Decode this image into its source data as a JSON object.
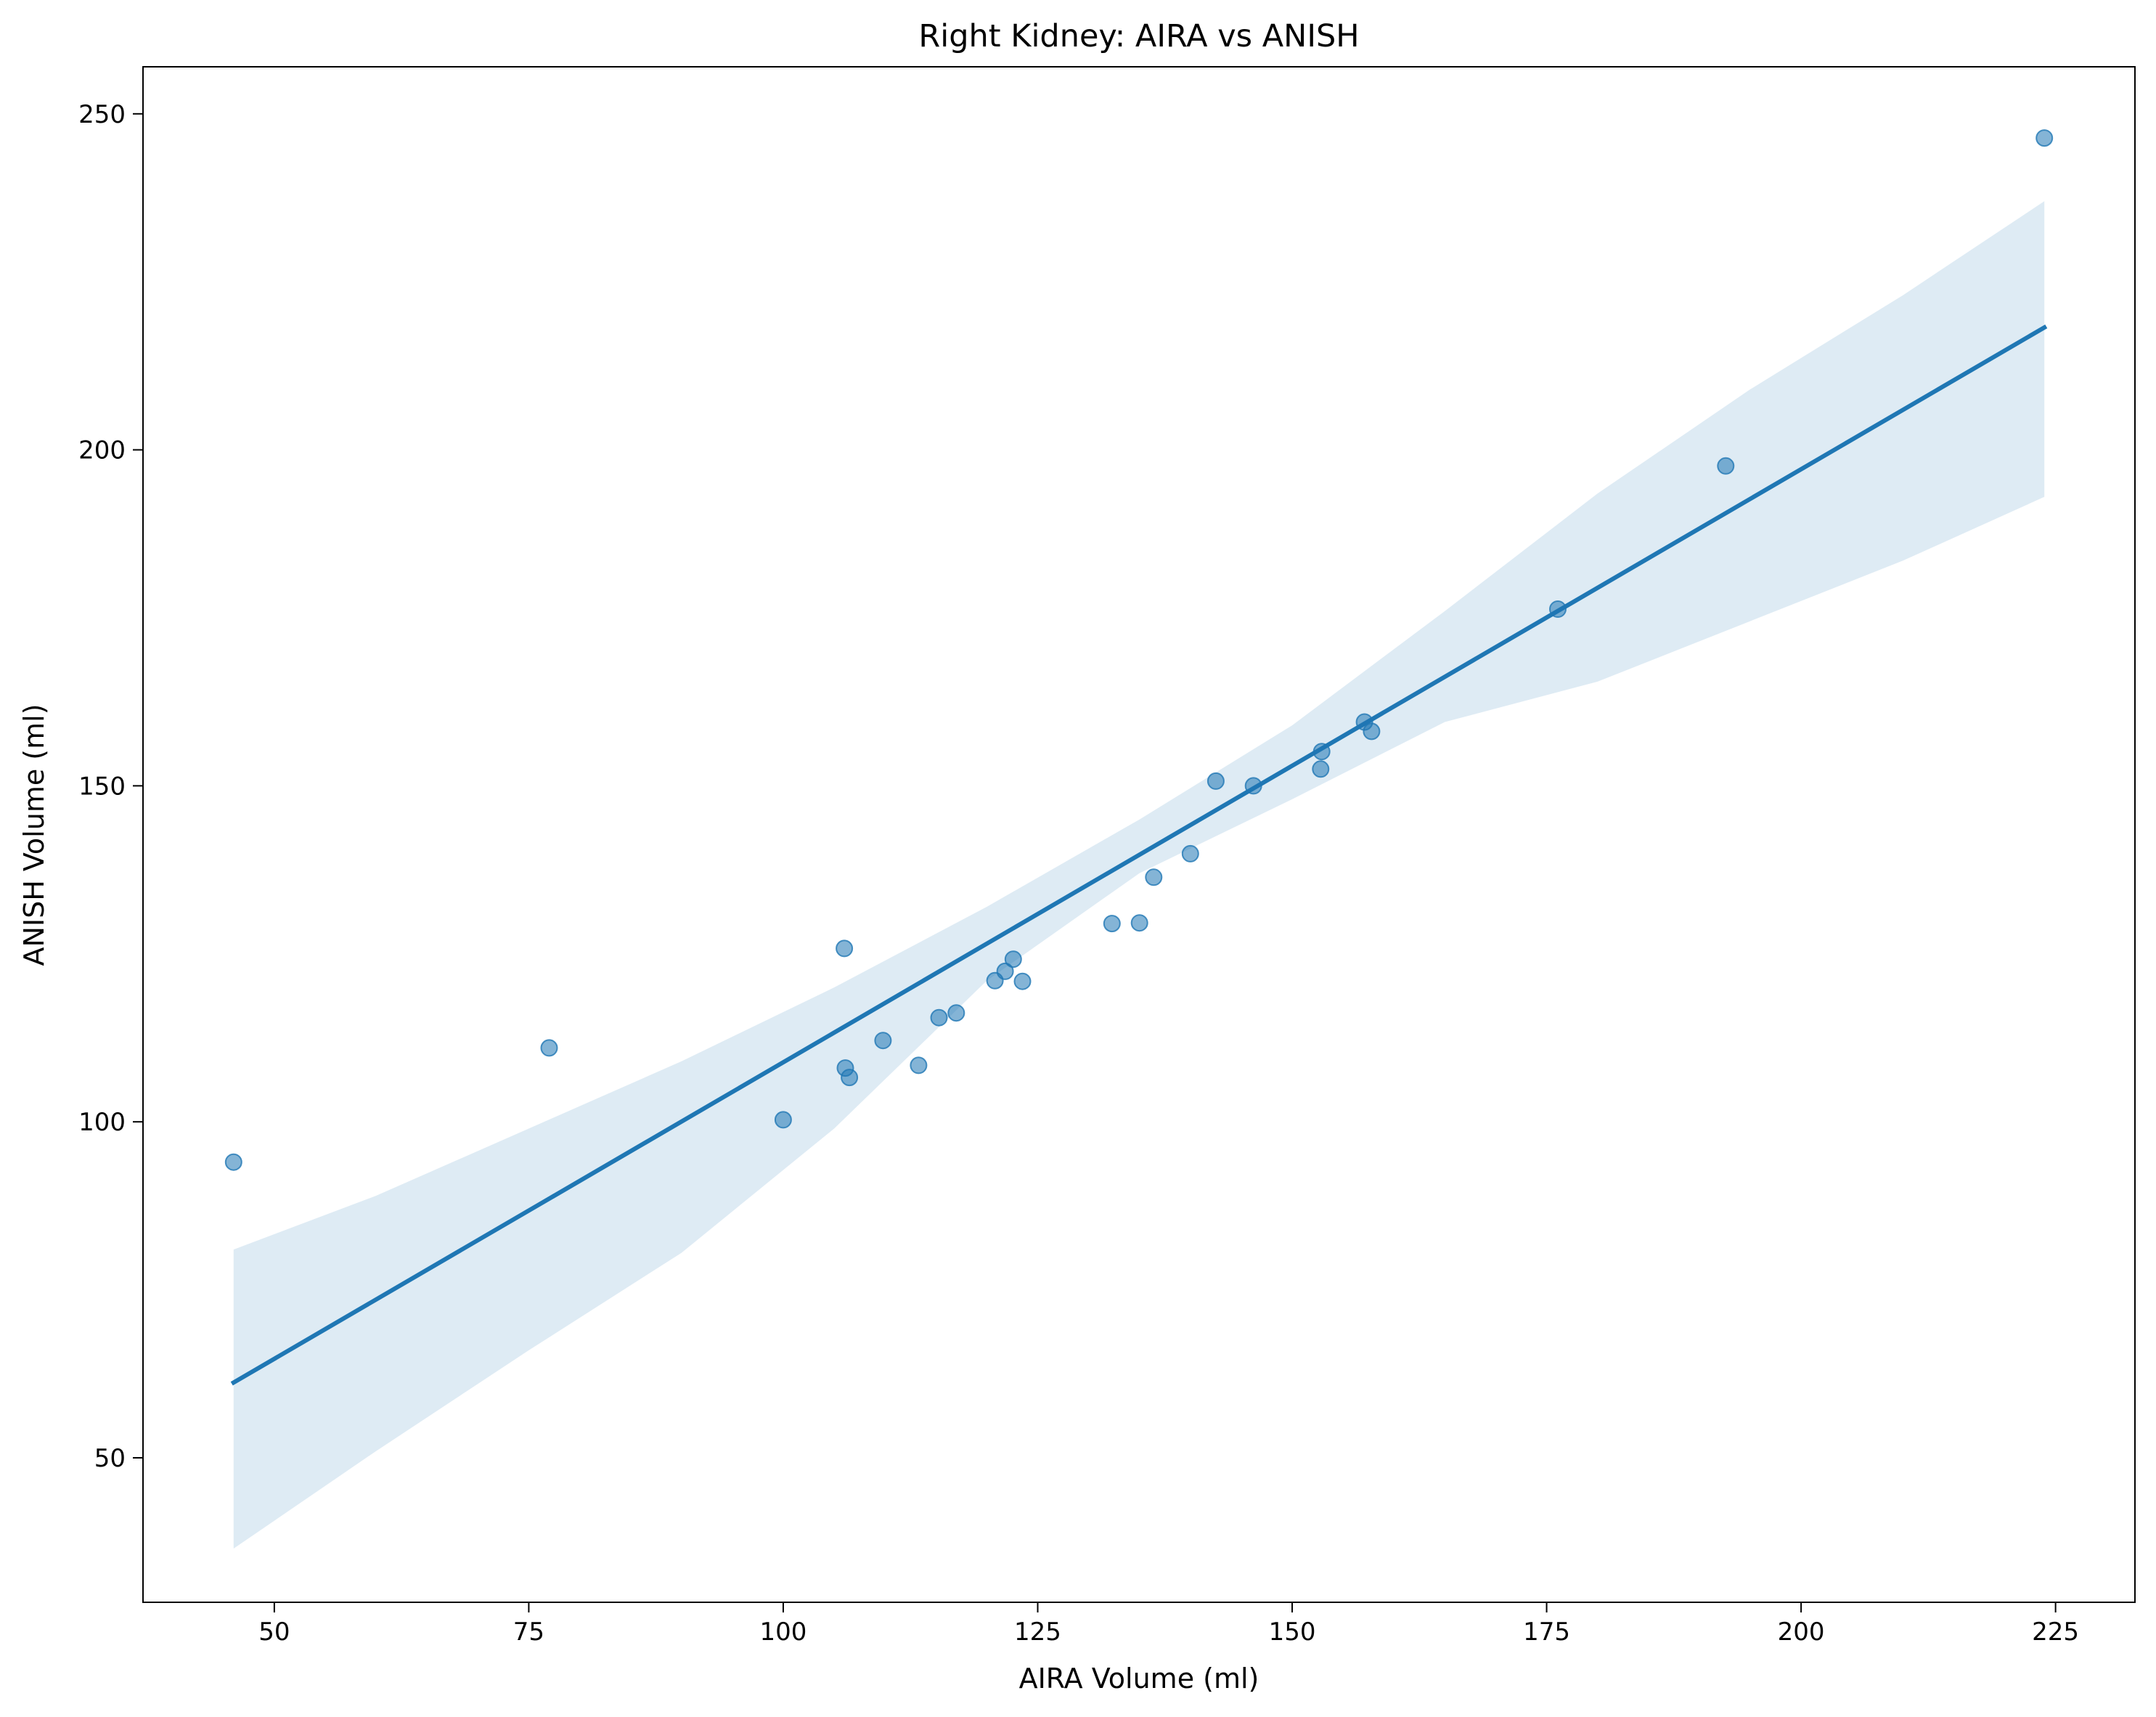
{
  "chart_data": {
    "type": "scatter",
    "title": "Right Kidney: AIRA vs ANISH",
    "xlabel": "AIRA Volume (ml)",
    "ylabel": "ANISH Volume (ml)",
    "xlim": [
      37.1,
      232.8
    ],
    "ylim": [
      28.5,
      257.0
    ],
    "x_ticks": [
      50,
      75,
      100,
      125,
      150,
      175,
      200,
      225
    ],
    "y_ticks": [
      50,
      100,
      150,
      200,
      250
    ],
    "grid": false,
    "legend": "none",
    "point_color": "#1f77b4",
    "point_opacity": 0.55,
    "points": [
      {
        "x": 46.0,
        "y": 94.0
      },
      {
        "x": 77.0,
        "y": 111.0
      },
      {
        "x": 100.0,
        "y": 100.3
      },
      {
        "x": 106.0,
        "y": 125.8
      },
      {
        "x": 106.1,
        "y": 108.0
      },
      {
        "x": 106.5,
        "y": 106.6
      },
      {
        "x": 109.8,
        "y": 112.1
      },
      {
        "x": 113.3,
        "y": 108.4
      },
      {
        "x": 115.3,
        "y": 115.5
      },
      {
        "x": 117.0,
        "y": 116.2
      },
      {
        "x": 120.8,
        "y": 121.0
      },
      {
        "x": 121.8,
        "y": 122.4
      },
      {
        "x": 122.6,
        "y": 124.2
      },
      {
        "x": 123.5,
        "y": 120.9
      },
      {
        "x": 132.3,
        "y": 129.5
      },
      {
        "x": 135.0,
        "y": 129.6
      },
      {
        "x": 136.4,
        "y": 136.4
      },
      {
        "x": 140.0,
        "y": 139.9
      },
      {
        "x": 142.5,
        "y": 150.7
      },
      {
        "x": 146.2,
        "y": 150.0
      },
      {
        "x": 152.8,
        "y": 152.5
      },
      {
        "x": 152.9,
        "y": 155.1
      },
      {
        "x": 157.1,
        "y": 159.5
      },
      {
        "x": 157.8,
        "y": 158.1
      },
      {
        "x": 176.1,
        "y": 176.3
      },
      {
        "x": 192.6,
        "y": 197.6
      },
      {
        "x": 223.9,
        "y": 246.4
      }
    ],
    "regression_line": {
      "color": "#1f77b4",
      "points": [
        {
          "x": 46.0,
          "y": 61.2
        },
        {
          "x": 223.9,
          "y": 218.2
        }
      ]
    },
    "confidence_band": {
      "color": "#1f77b4",
      "opacity": 0.15,
      "upper": [
        {
          "x": 46.0,
          "y": 81.0
        },
        {
          "x": 60.0,
          "y": 89.0
        },
        {
          "x": 75.0,
          "y": 99.0
        },
        {
          "x": 90.0,
          "y": 109.0
        },
        {
          "x": 105.0,
          "y": 120.0
        },
        {
          "x": 120.0,
          "y": 132.0
        },
        {
          "x": 135.0,
          "y": 145.0
        },
        {
          "x": 150.0,
          "y": 159.0
        },
        {
          "x": 165.0,
          "y": 176.0
        },
        {
          "x": 180.0,
          "y": 193.5
        },
        {
          "x": 195.0,
          "y": 209.0
        },
        {
          "x": 210.0,
          "y": 223.0
        },
        {
          "x": 223.9,
          "y": 237.0
        }
      ],
      "lower": [
        {
          "x": 46.0,
          "y": 36.5
        },
        {
          "x": 60.0,
          "y": 51.0
        },
        {
          "x": 75.0,
          "y": 66.0
        },
        {
          "x": 90.0,
          "y": 80.5
        },
        {
          "x": 105.0,
          "y": 99.0
        },
        {
          "x": 120.0,
          "y": 121.0
        },
        {
          "x": 135.0,
          "y": 137.0
        },
        {
          "x": 150.0,
          "y": 148.0
        },
        {
          "x": 165.0,
          "y": 159.5
        },
        {
          "x": 180.0,
          "y": 165.5
        },
        {
          "x": 195.0,
          "y": 174.5
        },
        {
          "x": 210.0,
          "y": 183.5
        },
        {
          "x": 223.9,
          "y": 193.0
        }
      ]
    }
  }
}
